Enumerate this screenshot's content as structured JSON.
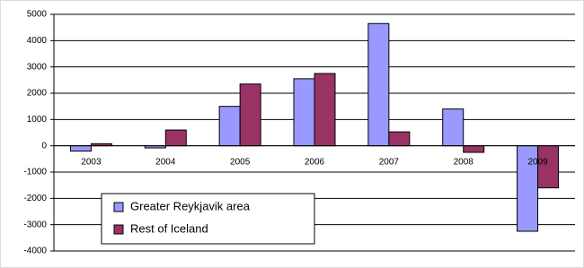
{
  "chart_data": {
    "type": "bar",
    "categories": [
      "2003",
      "2004",
      "2005",
      "2006",
      "2007",
      "2008",
      "2009"
    ],
    "series": [
      {
        "name": "Greater Reykjavik area",
        "color": "#9999ff",
        "values": [
          -200,
          -80,
          1500,
          2550,
          4650,
          1400,
          -3250
        ]
      },
      {
        "name": "Rest of Iceland",
        "color": "#993366",
        "values": [
          80,
          600,
          2350,
          2750,
          530,
          -250,
          -1600
        ]
      }
    ],
    "ylim": [
      -4000,
      5000
    ],
    "yticks": [
      -4000,
      -3000,
      -2000,
      -1000,
      0,
      1000,
      2000,
      3000,
      4000,
      5000
    ],
    "grid": true,
    "legend": "lower left"
  }
}
